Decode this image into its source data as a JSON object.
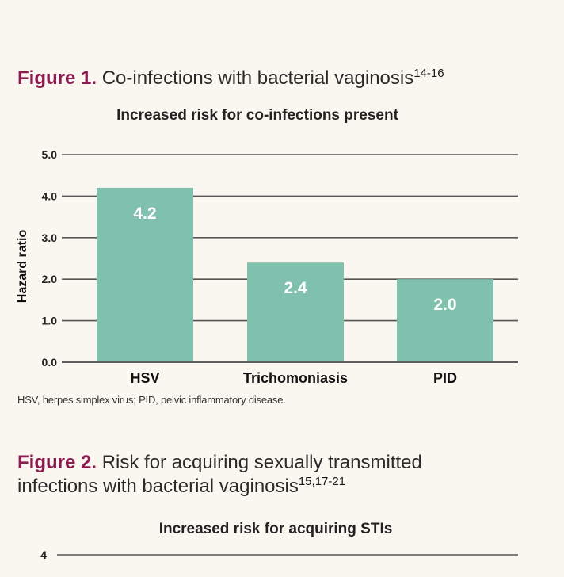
{
  "figure1": {
    "label": "Figure 1.",
    "title": "Co-infections with bacterial vaginosis",
    "superscript": "14-16",
    "subtitle": "Increased risk for co-infections present",
    "footnote": "HSV, herpes simplex virus; PID, pelvic inflammatory disease."
  },
  "figure2": {
    "label": "Figure 2.",
    "title_line1": "Risk for acquiring sexually transmitted",
    "title_line2": "infections with bacterial vaginosis",
    "superscript": "15,17-21",
    "subtitle": "Increased risk for acquiring STIs"
  },
  "colors": {
    "bar": "#7fc1ad",
    "grid": "#555555",
    "bar_label": "#ffffff",
    "figure_label": "#8a1c4f"
  },
  "chart_data": [
    {
      "type": "bar",
      "title": "Increased risk for co-infections present",
      "categories": [
        "HSV",
        "Trichomoniasis",
        "PID"
      ],
      "values": [
        4.2,
        2.4,
        2.0
      ],
      "data_labels": [
        "4.2",
        "2.4",
        "2.0"
      ],
      "ylabel": "Hazard ratio",
      "xlabel": "",
      "ylim": [
        0,
        5
      ],
      "yticks": [
        "0.0",
        "1.0",
        "2.0",
        "3.0",
        "4.0",
        "5.0"
      ],
      "grid": true
    },
    {
      "type": "bar",
      "title": "Increased risk for acquiring STIs",
      "visible_yticks": [
        "4"
      ],
      "grid": true
    }
  ]
}
